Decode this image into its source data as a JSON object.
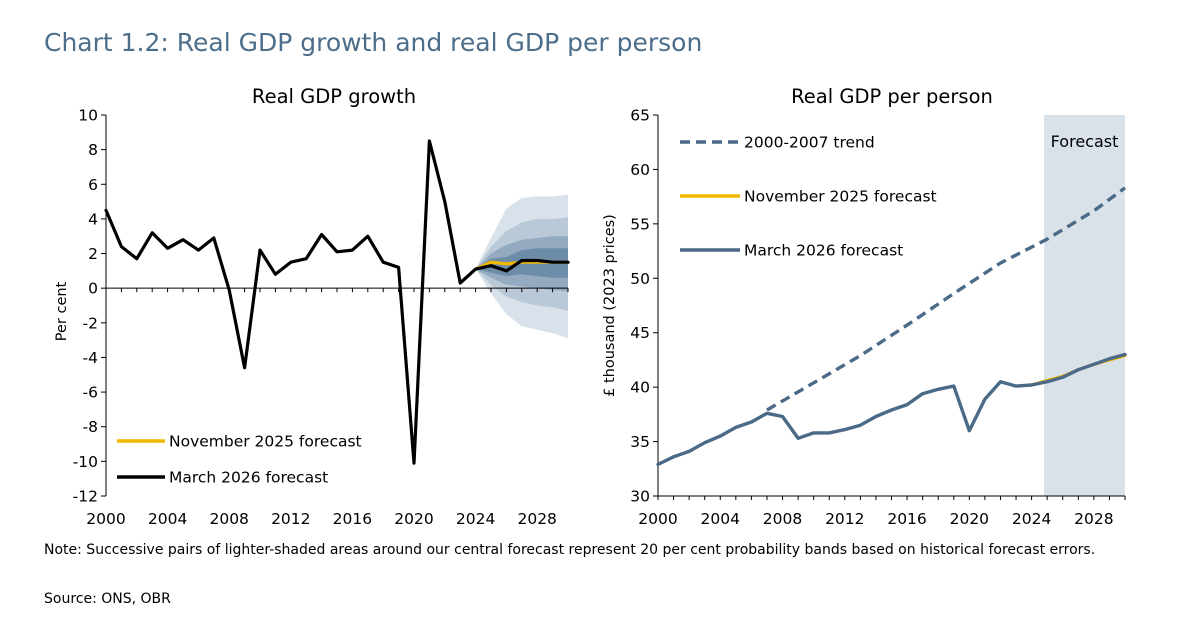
{
  "page_title": "Chart 1.2: Real GDP growth and real GDP per person",
  "note": "Note: Successive pairs of lighter-shaded areas around our central forecast represent 20 per cent probability bands based on historical forecast errors.",
  "source": "Source: ONS, OBR",
  "colors": {
    "title": "#4d6e8b",
    "march": "#000000",
    "march_right": "#4a6a87",
    "november": "#f2b800",
    "trend": "#4a6a87",
    "fan_outer": "#d9e2ea",
    "fan_mid2": "#b9c9d7",
    "fan_mid1": "#93aac0",
    "fan_inner": "#6d8ca8",
    "forecast_shade": "#d9e1e9"
  },
  "chart_data": [
    {
      "type": "line",
      "title": "Real GDP growth",
      "xlabel": "",
      "ylabel": "Per cent",
      "xlim": [
        2000,
        2030
      ],
      "ylim": [
        -12,
        10
      ],
      "x_ticks": [
        2000,
        2004,
        2008,
        2012,
        2016,
        2020,
        2024,
        2028
      ],
      "y_ticks": [
        10,
        8,
        6,
        4,
        2,
        0,
        -2,
        -4,
        -6,
        -8,
        -10,
        -12
      ],
      "legend_position": "bottom-left",
      "series": [
        {
          "name": "November 2025 forecast",
          "color": "#f2b800",
          "x": [
            2024,
            2025,
            2026,
            2027,
            2028,
            2029,
            2030
          ],
          "values": [
            1.1,
            1.5,
            1.4,
            1.5,
            1.5,
            1.5,
            1.5
          ]
        },
        {
          "name": "March 2026 forecast",
          "color": "#000000",
          "x": [
            2000,
            2001,
            2002,
            2003,
            2004,
            2005,
            2006,
            2007,
            2008,
            2009,
            2010,
            2011,
            2012,
            2013,
            2014,
            2015,
            2016,
            2017,
            2018,
            2019,
            2020,
            2021,
            2022,
            2023,
            2024,
            2025,
            2026,
            2027,
            2028,
            2029,
            2030
          ],
          "values": [
            4.5,
            2.4,
            1.7,
            3.2,
            2.3,
            2.8,
            2.2,
            2.9,
            -0.1,
            -4.6,
            2.2,
            0.8,
            1.5,
            1.7,
            3.1,
            2.1,
            2.2,
            3.0,
            1.5,
            1.2,
            -10.1,
            8.5,
            5.0,
            0.3,
            1.1,
            1.3,
            1.0,
            1.6,
            1.6,
            1.5,
            1.5
          ]
        }
      ],
      "fan_chart": {
        "x": [
          2024,
          2025,
          2026,
          2027,
          2028,
          2029,
          2030
        ],
        "center": [
          1.1,
          1.3,
          1.0,
          1.6,
          1.6,
          1.5,
          1.5
        ],
        "bands": [
          {
            "name": "outer",
            "lower": [
              1.1,
              -0.3,
              -1.5,
              -2.2,
              -2.4,
              -2.6,
              -2.9
            ],
            "upper": [
              1.1,
              2.9,
              4.6,
              5.2,
              5.3,
              5.3,
              5.4
            ]
          },
          {
            "name": "mid2",
            "lower": [
              1.1,
              0.2,
              -0.5,
              -0.8,
              -1.0,
              -1.1,
              -1.3
            ],
            "upper": [
              1.1,
              2.4,
              3.3,
              3.8,
              4.0,
              4.0,
              4.1
            ]
          },
          {
            "name": "mid1",
            "lower": [
              1.1,
              0.6,
              0.2,
              0.1,
              0.0,
              -0.1,
              -0.2
            ],
            "upper": [
              1.1,
              2.0,
              2.5,
              2.8,
              2.9,
              3.0,
              3.0
            ]
          },
          {
            "name": "inner",
            "lower": [
              1.1,
              0.9,
              0.7,
              0.8,
              0.7,
              0.6,
              0.6
            ],
            "upper": [
              1.1,
              1.7,
              1.8,
              2.2,
              2.3,
              2.3,
              2.3
            ]
          }
        ]
      }
    },
    {
      "type": "line",
      "title": "Real GDP per person",
      "xlabel": "",
      "ylabel": "£ thousand (2023 prices)",
      "xlim": [
        2000,
        2030
      ],
      "ylim": [
        30,
        65
      ],
      "x_ticks": [
        2000,
        2004,
        2008,
        2012,
        2016,
        2020,
        2024,
        2028
      ],
      "y_ticks": [
        65,
        60,
        55,
        50,
        45,
        40,
        35,
        30
      ],
      "legend_position": "top-left",
      "forecast_region": {
        "label": "Forecast",
        "from": 2024.8,
        "to": 2030
      },
      "series": [
        {
          "name": "2000-2007 trend",
          "color": "#4a6a87",
          "dashed": true,
          "x": [
            2007,
            2010,
            2013,
            2016,
            2019,
            2022,
            2025,
            2028,
            2030
          ],
          "values": [
            37.9,
            40.4,
            42.9,
            45.7,
            48.6,
            51.4,
            53.6,
            56.2,
            58.3
          ]
        },
        {
          "name": "November 2025 forecast",
          "color": "#f2b800",
          "x": [
            2024,
            2025,
            2026,
            2027,
            2028,
            2029,
            2030
          ],
          "values": [
            40.2,
            40.6,
            41.0,
            41.6,
            42.1,
            42.5,
            42.9
          ]
        },
        {
          "name": "March 2026 forecast",
          "color": "#4a6a87",
          "x": [
            2000,
            2001,
            2002,
            2003,
            2004,
            2005,
            2006,
            2007,
            2008,
            2009,
            2010,
            2011,
            2012,
            2013,
            2014,
            2015,
            2016,
            2017,
            2018,
            2019,
            2020,
            2021,
            2022,
            2023,
            2024,
            2025,
            2026,
            2027,
            2028,
            2029,
            2030
          ],
          "values": [
            32.9,
            33.6,
            34.1,
            34.9,
            35.5,
            36.3,
            36.8,
            37.6,
            37.3,
            35.3,
            35.8,
            35.8,
            36.1,
            36.5,
            37.3,
            37.9,
            38.4,
            39.4,
            39.8,
            40.1,
            36.0,
            38.9,
            40.5,
            40.1,
            40.2,
            40.5,
            40.9,
            41.6,
            42.1,
            42.6,
            43.0
          ]
        }
      ]
    }
  ]
}
